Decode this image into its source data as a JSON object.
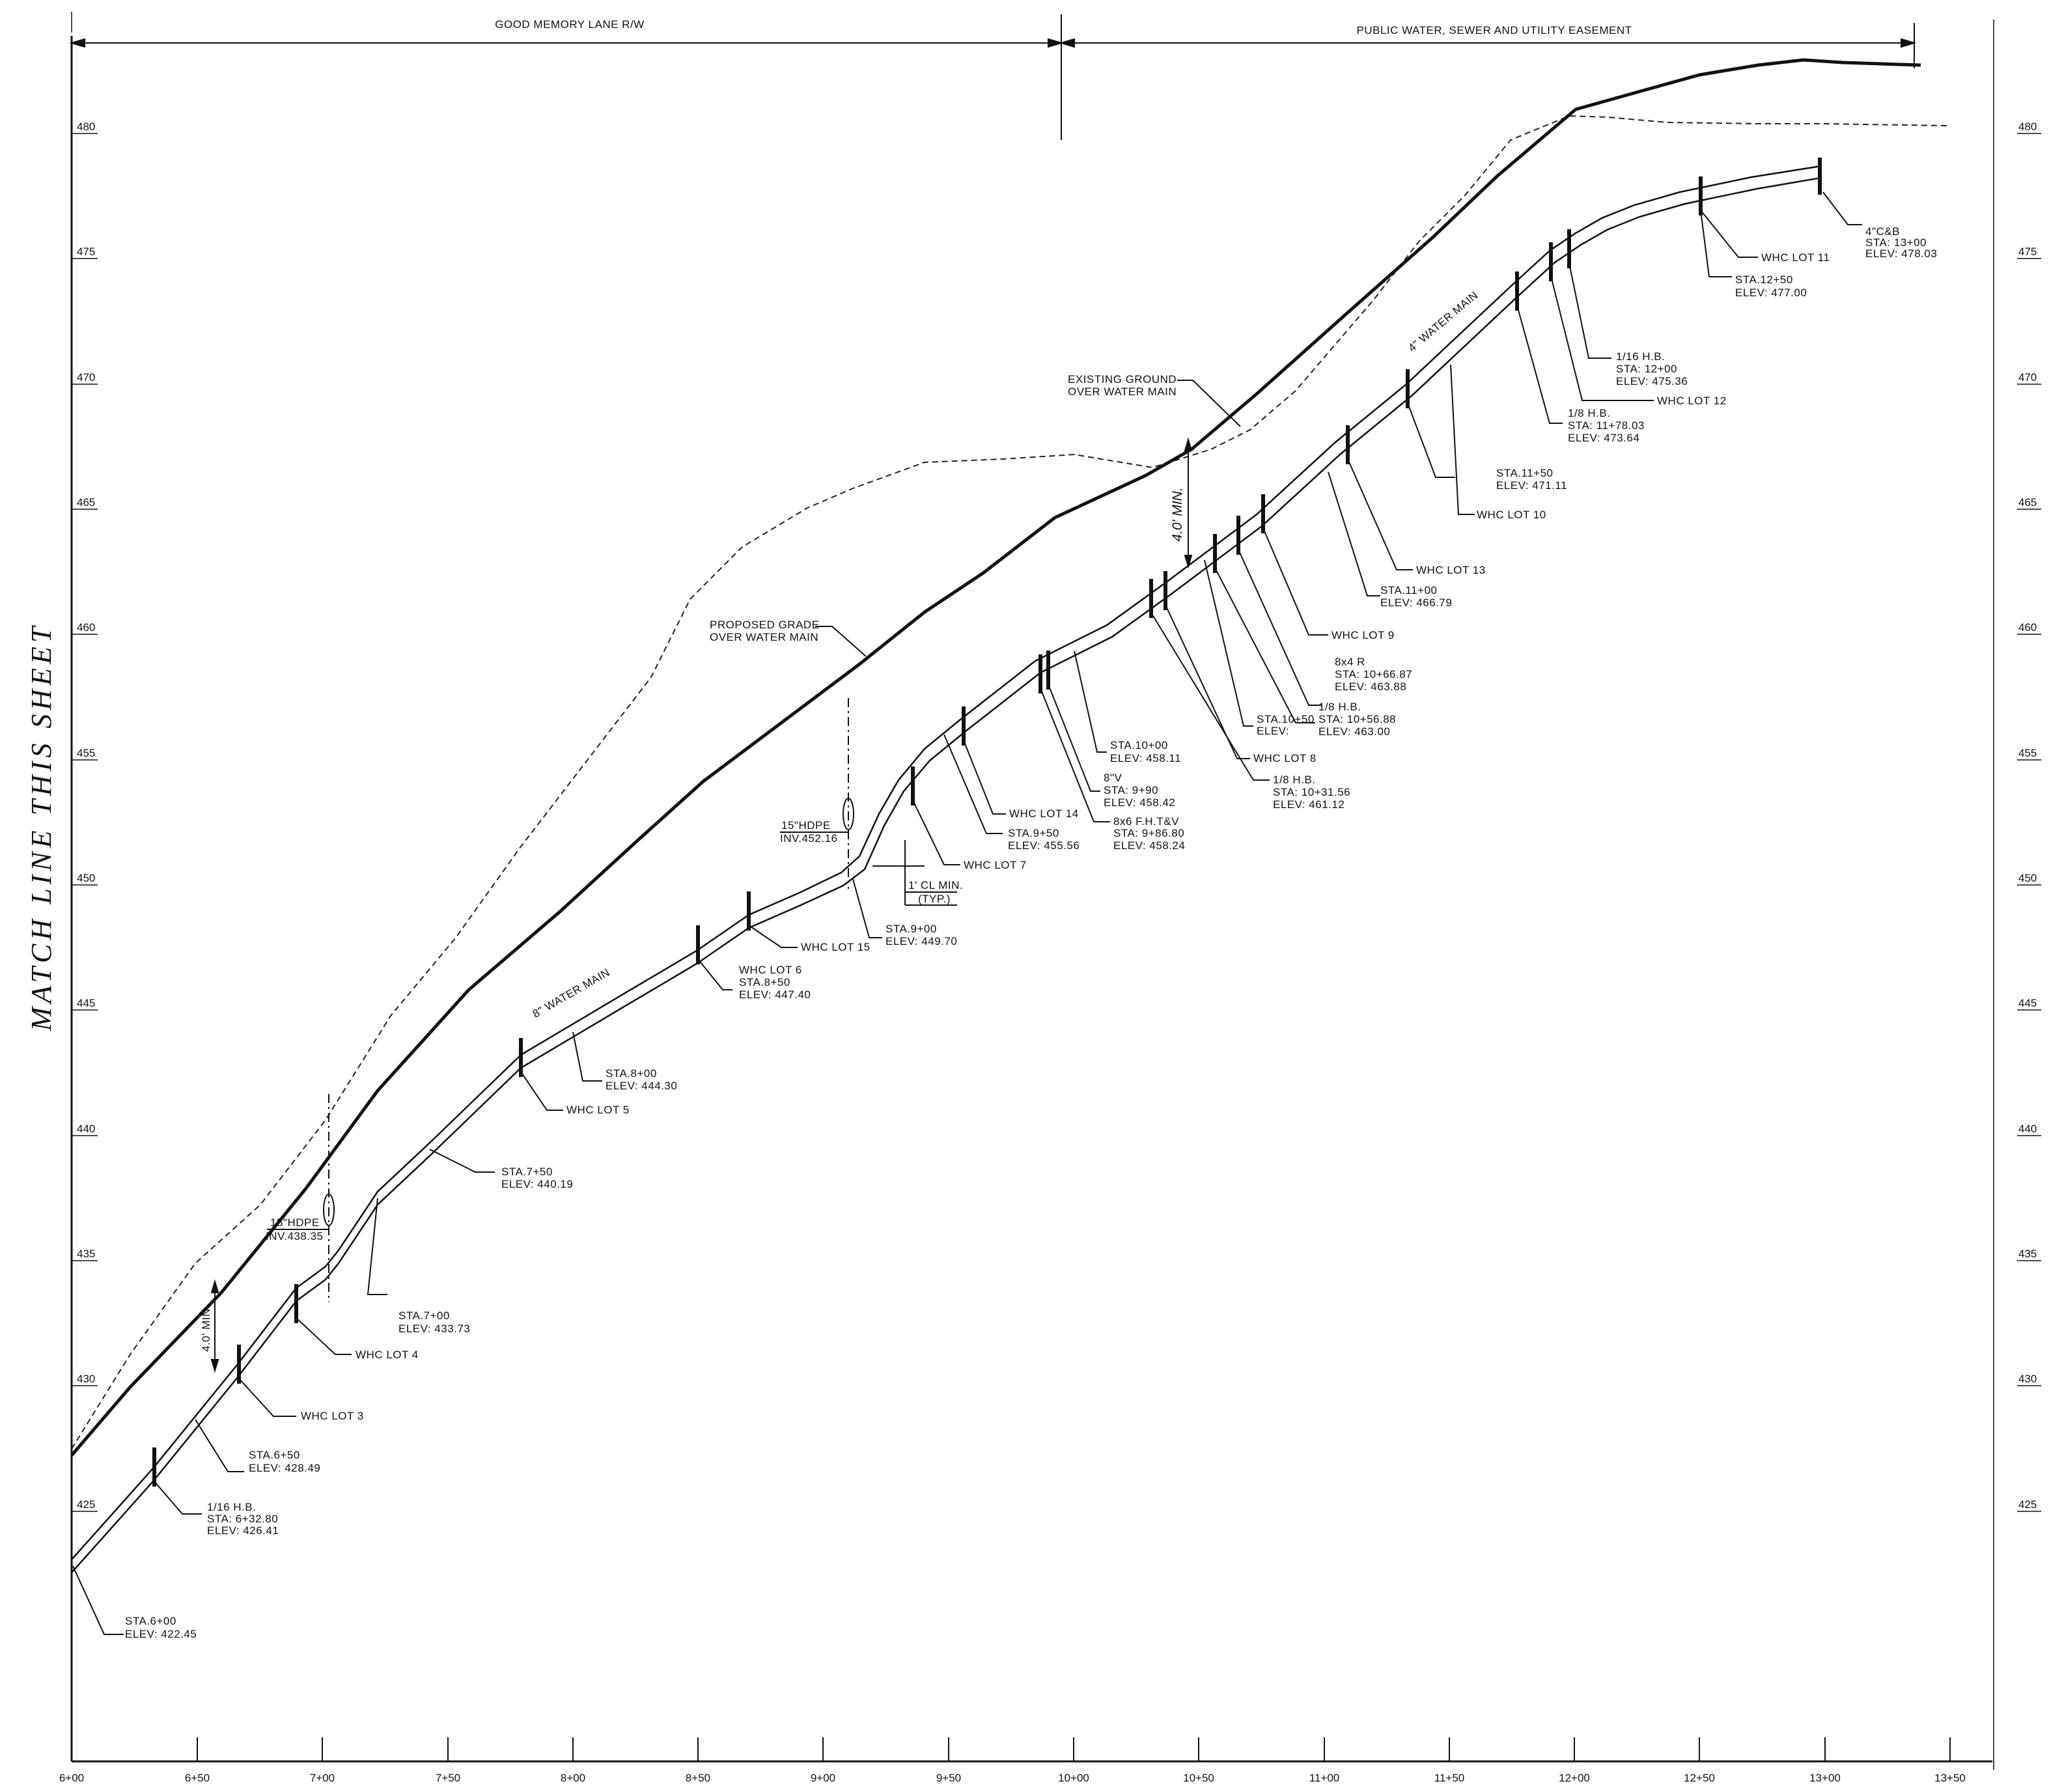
{
  "header": {
    "left_title": "GOOD MEMORY LANE R/W",
    "right_title": "PUBLIC WATER, SEWER AND UTILITY EASEMENT"
  },
  "match_line": "MATCH LINE THIS SHEET",
  "axes": {
    "elevation_ticks": [
      "425",
      "430",
      "435",
      "440",
      "445",
      "450",
      "455",
      "460",
      "465",
      "470",
      "475",
      "480"
    ],
    "station_ticks": [
      "6+00",
      "6+50",
      "7+00",
      "7+50",
      "8+00",
      "8+50",
      "9+00",
      "9+50",
      "10+00",
      "10+50",
      "11+00",
      "11+50",
      "12+00",
      "12+50",
      "13+00",
      "13+50"
    ]
  },
  "profile_labels": {
    "existing_ground": [
      "EXISTING GROUND",
      "OVER WATER MAIN"
    ],
    "proposed_grade": [
      "PROPOSED GRADE",
      "OVER WATER MAIN"
    ],
    "main_8in": "8\" WATER MAIN",
    "main_4in": "4\" WATER MAIN",
    "cover_min": "4.0' MIN.",
    "clearance": [
      "1' CL MIN.",
      "(TYP.)"
    ]
  },
  "culverts": [
    {
      "lines": [
        "15\"HDPE",
        "INV.438.35"
      ]
    },
    {
      "lines": [
        "15\"HDPE",
        "INV.452.16"
      ]
    }
  ],
  "callouts": [
    {
      "id": "sta600",
      "lines": [
        "STA.6+00",
        "ELEV:  422.45"
      ]
    },
    {
      "id": "hb632",
      "lines": [
        "1/16  H.B.",
        "STA:  6+32.80",
        "ELEV:  426.41"
      ]
    },
    {
      "id": "sta650",
      "lines": [
        "STA.6+50",
        "ELEV:  428.49"
      ]
    },
    {
      "id": "lot3",
      "lines": [
        "WHC LOT 3"
      ]
    },
    {
      "id": "lot4",
      "lines": [
        "WHC LOT 4"
      ]
    },
    {
      "id": "sta700",
      "lines": [
        "STA.7+00",
        "ELEV:  433.73"
      ]
    },
    {
      "id": "sta750",
      "lines": [
        "STA.7+50",
        "ELEV:  440.19"
      ]
    },
    {
      "id": "lot5",
      "lines": [
        "WHC LOT 5"
      ]
    },
    {
      "id": "sta800",
      "lines": [
        "STA.8+00",
        "ELEV:  444.30"
      ]
    },
    {
      "id": "lot6",
      "lines": [
        "WHC LOT 6",
        "STA.8+50",
        "ELEV:  447.40"
      ]
    },
    {
      "id": "lot15",
      "lines": [
        "WHC LOT 15"
      ]
    },
    {
      "id": "sta900",
      "lines": [
        "STA.9+00",
        "ELEV:  449.70"
      ]
    },
    {
      "id": "lot7",
      "lines": [
        "WHC LOT 7"
      ]
    },
    {
      "id": "sta950",
      "lines": [
        "STA.9+50",
        "ELEV:  455.56"
      ]
    },
    {
      "id": "lot14",
      "lines": [
        "WHC LOT 14"
      ]
    },
    {
      "id": "fh986",
      "lines": [
        "8x6  F.H.T&V",
        "STA:  9+86.80",
        "ELEV:  458.24"
      ]
    },
    {
      "id": "v990",
      "lines": [
        "8\"V",
        "STA:  9+90",
        "ELEV:  458.42"
      ]
    },
    {
      "id": "sta1000",
      "lines": [
        "STA.10+00",
        "ELEV:  458.11"
      ]
    },
    {
      "id": "hb1031",
      "lines": [
        "1/8  H.B.",
        "STA:  10+31.56",
        "ELEV:  461.12"
      ]
    },
    {
      "id": "lot8",
      "lines": [
        "WHC LOT 8"
      ]
    },
    {
      "id": "sta1050",
      "lines": [
        "STA.10+50",
        "ELEV:"
      ]
    },
    {
      "id": "hb1056",
      "lines": [
        "1/8  H.B.",
        "STA:  10+56.88",
        "ELEV:  463.00"
      ]
    },
    {
      "id": "r1066",
      "lines": [
        "8x4  R",
        "STA:  10+66.87",
        "ELEV:  463.88"
      ]
    },
    {
      "id": "lot9",
      "lines": [
        "WHC LOT 9"
      ]
    },
    {
      "id": "sta1100",
      "lines": [
        "STA.11+00",
        "ELEV:  466.79"
      ]
    },
    {
      "id": "lot13",
      "lines": [
        "WHC LOT 13"
      ]
    },
    {
      "id": "lot10",
      "lines": [
        "WHC LOT 10"
      ]
    },
    {
      "id": "sta1150",
      "lines": [
        "STA.11+50",
        "ELEV:  471.11"
      ]
    },
    {
      "id": "hb1178",
      "lines": [
        "1/8  H.B.",
        "STA:  11+78.03",
        "ELEV:  473.64"
      ]
    },
    {
      "id": "lot12",
      "lines": [
        "WHC LOT 12"
      ]
    },
    {
      "id": "hb1200",
      "lines": [
        "1/16  H.B.",
        "STA:  12+00",
        "ELEV:  475.36"
      ]
    },
    {
      "id": "sta1250",
      "lines": [
        "STA.12+50",
        "ELEV:  477.00"
      ]
    },
    {
      "id": "lot11",
      "lines": [
        "WHC LOT 11"
      ]
    },
    {
      "id": "cb1300",
      "lines": [
        "4\"C&B",
        "STA:  13+00",
        "ELEV:  478.03"
      ]
    }
  ]
}
